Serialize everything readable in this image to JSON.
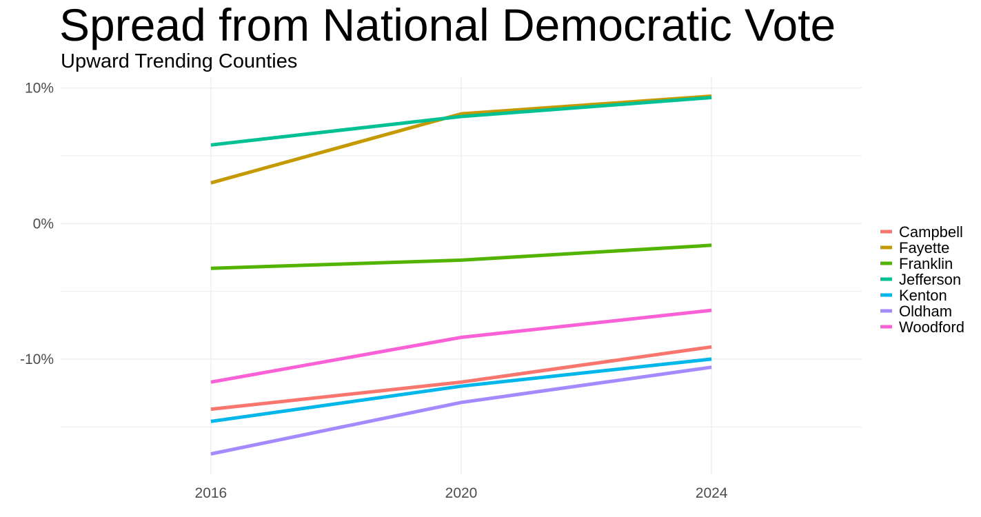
{
  "chart_data": {
    "type": "line",
    "title": "Spread from National Democratic Vote",
    "subtitle": "Upward Trending Counties",
    "xlabel": "",
    "ylabel": "",
    "x": [
      2016,
      2020,
      2024
    ],
    "x_ticks": [
      "2016",
      "2020",
      "2024"
    ],
    "xlim": [
      2013.6,
      2026.4
    ],
    "y_unit": "%",
    "ylim": [
      -18.5,
      10.8
    ],
    "y_ticks": [
      {
        "value": 10,
        "label": "10%"
      },
      {
        "value": 0,
        "label": "0%"
      },
      {
        "value": -10,
        "label": "-10%"
      }
    ],
    "y_minor": [
      5,
      -5,
      -15
    ],
    "grid": true,
    "legend_position": "right",
    "series": [
      {
        "name": "Campbell",
        "color": "#F8766D",
        "values": [
          -13.7,
          -11.7,
          -9.1
        ]
      },
      {
        "name": "Fayette",
        "color": "#C49A00",
        "values": [
          3.0,
          8.1,
          9.4
        ]
      },
      {
        "name": "Franklin",
        "color": "#53B400",
        "values": [
          -3.3,
          -2.7,
          -1.6
        ]
      },
      {
        "name": "Jefferson",
        "color": "#00C094",
        "values": [
          5.8,
          7.9,
          9.3
        ]
      },
      {
        "name": "Kenton",
        "color": "#00B6EB",
        "values": [
          -14.6,
          -12.0,
          -10.0
        ]
      },
      {
        "name": "Oldham",
        "color": "#A58AFF",
        "values": [
          -17.0,
          -13.2,
          -10.6
        ]
      },
      {
        "name": "Woodford",
        "color": "#FB61D7",
        "values": [
          -11.7,
          -8.4,
          -6.4
        ]
      }
    ]
  }
}
